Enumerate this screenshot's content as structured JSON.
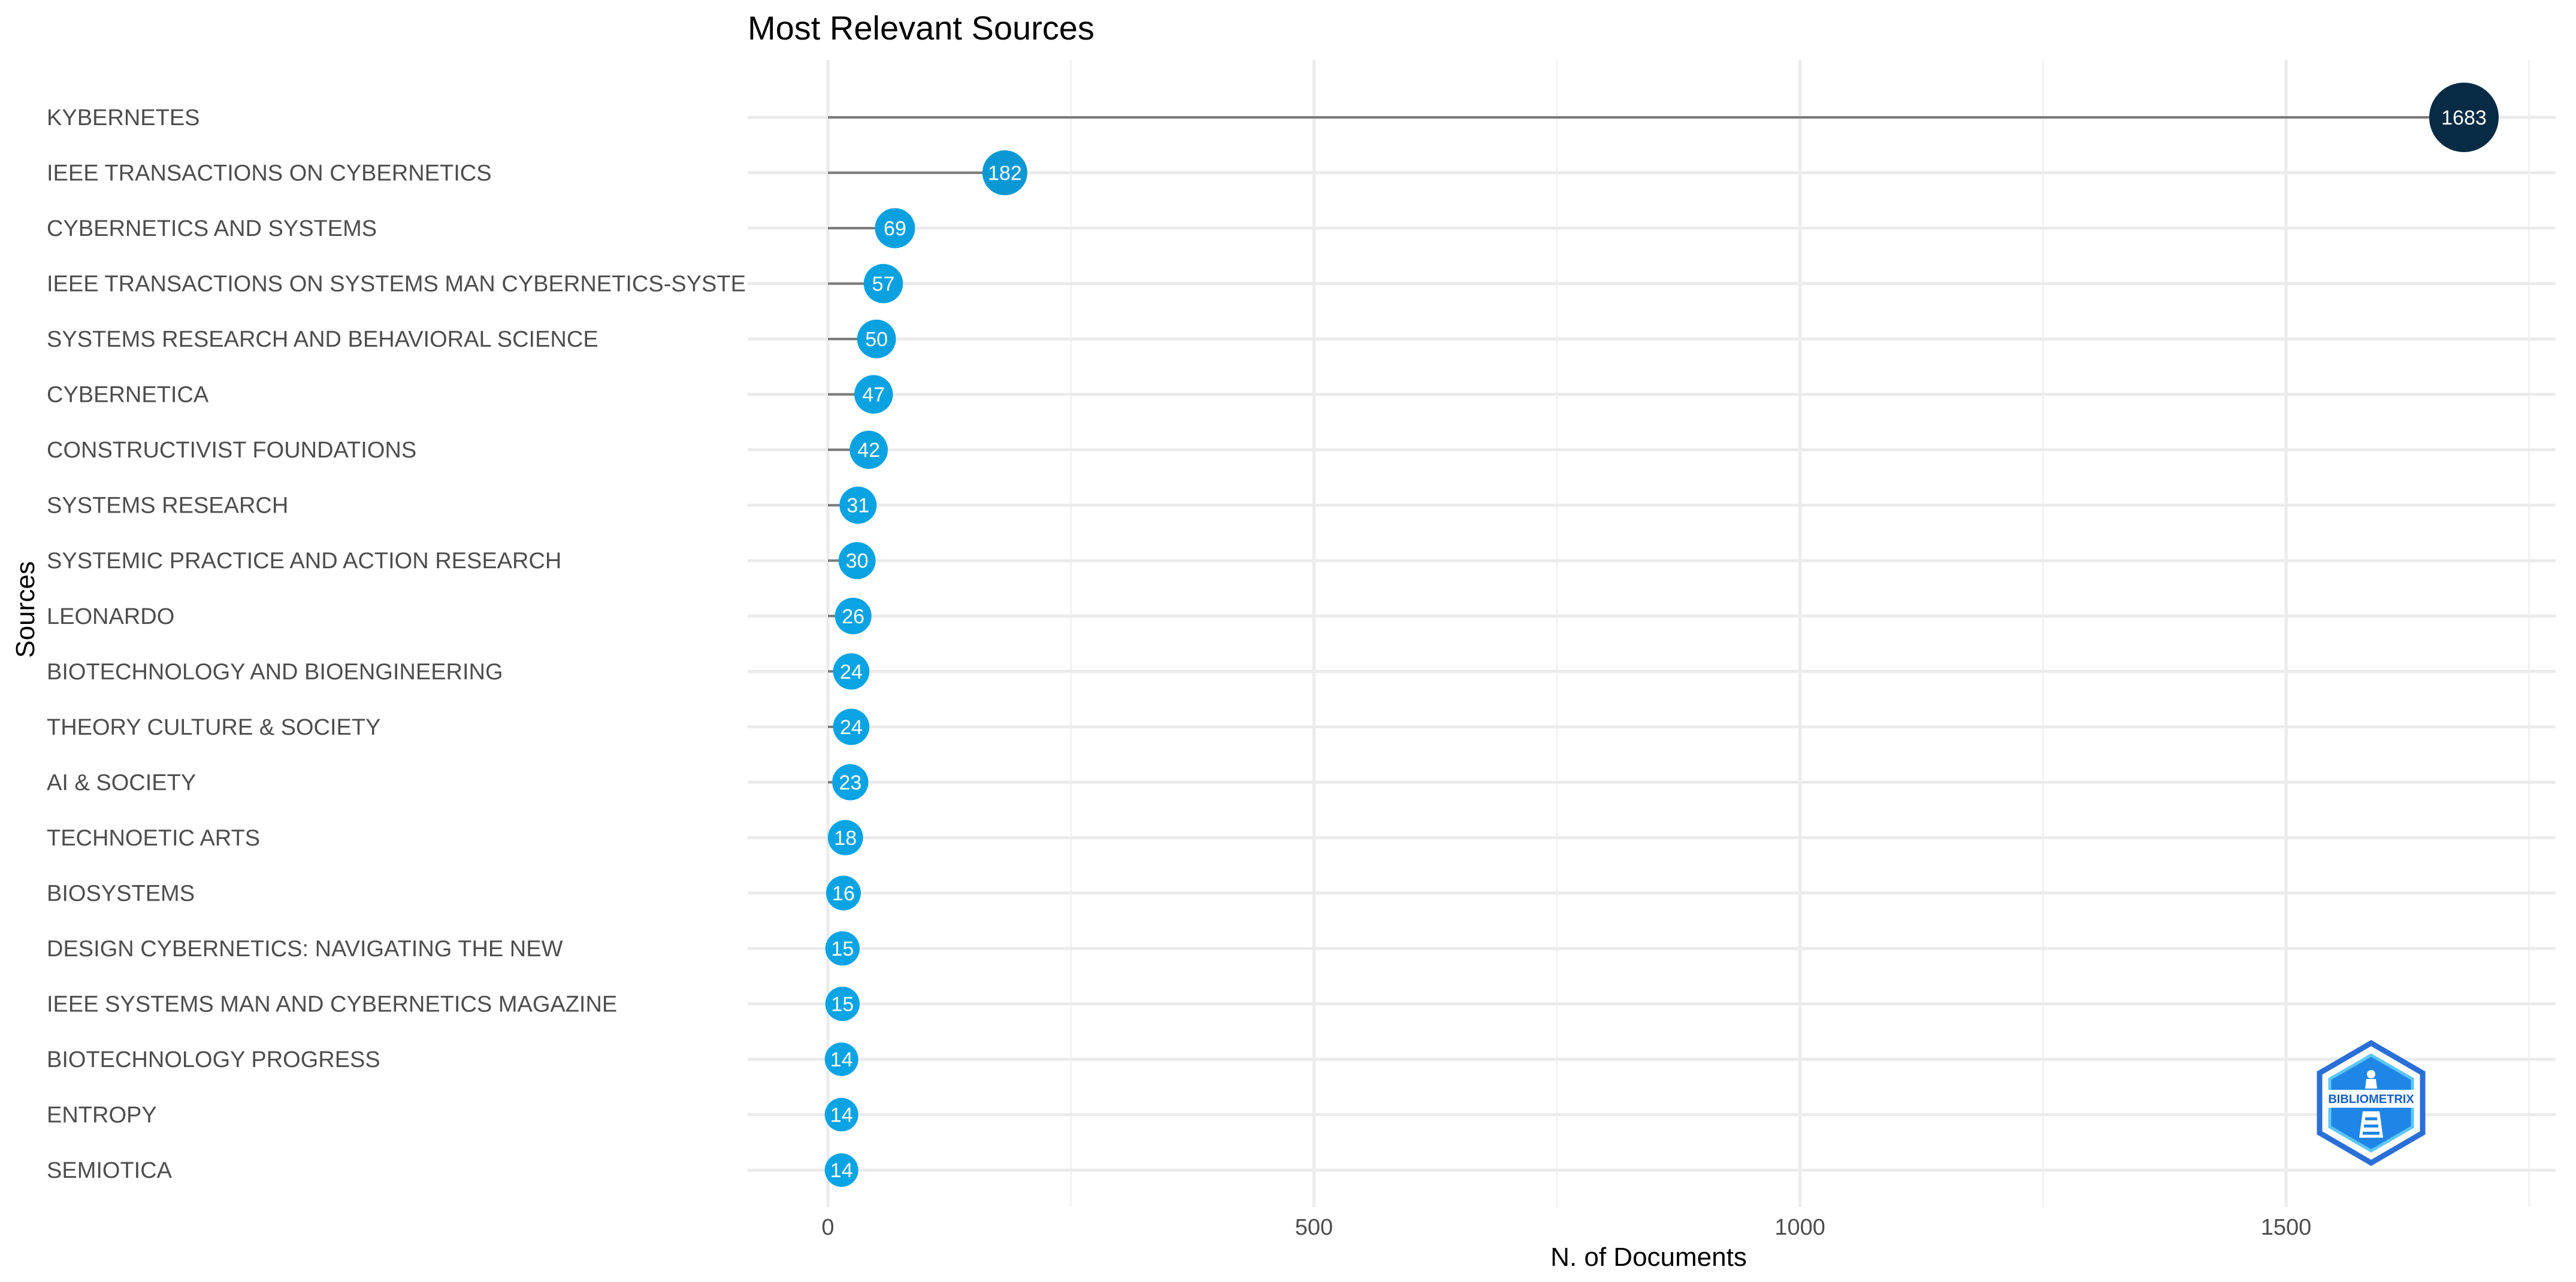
{
  "chart_data": {
    "type": "lollipop",
    "title": "Most Relevant Sources",
    "xlabel": "N. of Documents",
    "ylabel": "Sources",
    "xlim": [
      -85,
      1760
    ],
    "xticks": [
      0,
      500,
      1000,
      1500
    ],
    "grid": true,
    "categories": [
      "KYBERNETES",
      "IEEE TRANSACTIONS ON CYBERNETICS",
      "CYBERNETICS AND SYSTEMS",
      "IEEE TRANSACTIONS ON SYSTEMS MAN CYBERNETICS-SYSTE",
      "SYSTEMS RESEARCH AND BEHAVIORAL SCIENCE",
      "CYBERNETICA",
      "CONSTRUCTIVIST FOUNDATIONS",
      "SYSTEMS RESEARCH",
      "SYSTEMIC PRACTICE AND ACTION RESEARCH",
      "LEONARDO",
      "BIOTECHNOLOGY AND BIOENGINEERING",
      "THEORY CULTURE & SOCIETY",
      "AI & SOCIETY",
      "TECHNOETIC ARTS",
      "BIOSYSTEMS",
      "DESIGN CYBERNETICS: NAVIGATING THE NEW",
      "IEEE SYSTEMS MAN AND CYBERNETICS MAGAZINE",
      "BIOTECHNOLOGY PROGRESS",
      "ENTROPY",
      "SEMIOTICA"
    ],
    "values": [
      1683,
      182,
      69,
      57,
      50,
      47,
      42,
      31,
      30,
      26,
      24,
      24,
      23,
      18,
      16,
      15,
      15,
      14,
      14,
      14
    ],
    "colors": {
      "point_low": "#0aa4e4",
      "point_high": "#082b45",
      "stem": "#7a7a7a",
      "grid": "#ebebeb",
      "label": "#ffffff"
    }
  },
  "logo": {
    "text": "BIBLIOMETRIX"
  }
}
